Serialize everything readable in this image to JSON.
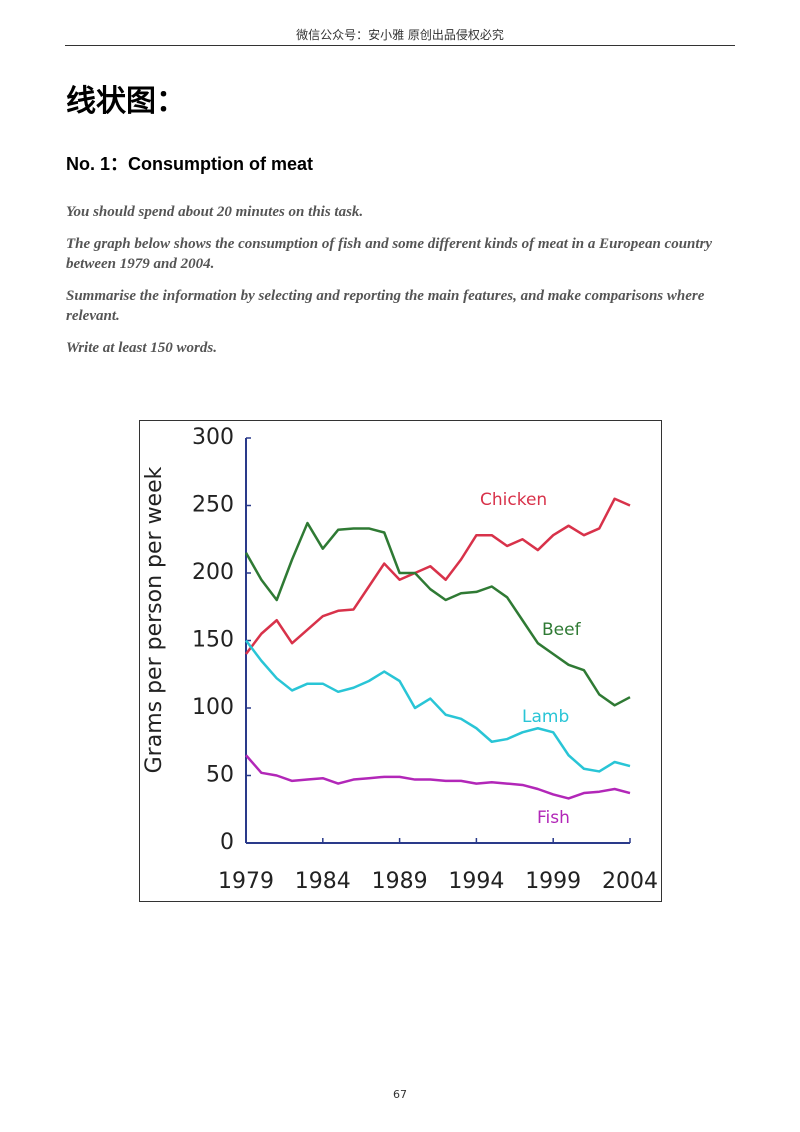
{
  "header": "微信公众号：安小雅 原创出品侵权必究",
  "heading": "线状图：",
  "task_title": "No. 1：Consumption of meat",
  "instructions": [
    "You should spend about 20 minutes on this task.",
    "The graph below shows the consumption of fish and some different kinds of meat in a European country between 1979 and 2004.",
    "Summarise the information by selecting and reporting the main features, and make comparisons where relevant.",
    "Write at least 150 words."
  ],
  "chart_data": {
    "type": "line",
    "y_label": "Grams per person per week",
    "x": [
      1979,
      1980,
      1981,
      1982,
      1983,
      1984,
      1985,
      1986,
      1987,
      1988,
      1989,
      1990,
      1991,
      1992,
      1993,
      1994,
      1995,
      1996,
      1997,
      1998,
      1999,
      2000,
      2001,
      2002,
      2003,
      2004
    ],
    "series": [
      {
        "name": "Chicken",
        "color": "#d8324a",
        "values": [
          140,
          155,
          165,
          148,
          158,
          168,
          172,
          173,
          190,
          207,
          195,
          200,
          205,
          195,
          210,
          228,
          228,
          220,
          225,
          217,
          228,
          235,
          228,
          233,
          255,
          250
        ]
      },
      {
        "name": "Beef",
        "color": "#2f7a34",
        "values": [
          215,
          195,
          180,
          210,
          237,
          218,
          232,
          233,
          233,
          230,
          200,
          200,
          188,
          180,
          185,
          186,
          190,
          182,
          165,
          148,
          140,
          132,
          128,
          110,
          102,
          108
        ]
      },
      {
        "name": "Lamb",
        "color": "#29c5d6",
        "values": [
          150,
          135,
          122,
          113,
          118,
          118,
          112,
          115,
          120,
          127,
          120,
          100,
          107,
          95,
          92,
          85,
          75,
          77,
          82,
          85,
          82,
          65,
          55,
          53,
          60,
          57
        ]
      },
      {
        "name": "Fish",
        "color": "#b227b8",
        "values": [
          65,
          52,
          50,
          46,
          47,
          48,
          44,
          47,
          48,
          49,
          49,
          47,
          47,
          46,
          46,
          44,
          45,
          44,
          43,
          40,
          36,
          33,
          37,
          38,
          40,
          37
        ]
      }
    ],
    "xlim": [
      1979,
      2004
    ],
    "xticks": [
      1979,
      1984,
      1989,
      1994,
      1999,
      2004
    ],
    "ylim": [
      0,
      300
    ],
    "yticks": [
      0,
      50,
      100,
      150,
      200,
      250,
      300
    ],
    "grid": false
  },
  "page_number": "67"
}
